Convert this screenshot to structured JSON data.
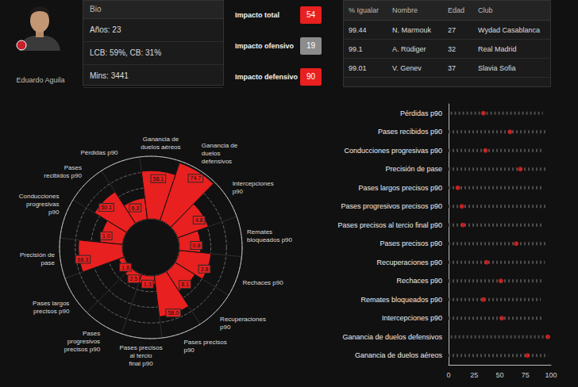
{
  "player": {
    "name": "Eduardo Aguila"
  },
  "bio": {
    "title": "Bio",
    "lines": [
      "Años: 23",
      "LCB: 59%, CB: 31%",
      "Mins: 3441"
    ]
  },
  "impact": [
    {
      "label": "Impacto total",
      "value": 54,
      "color": "#e8201f"
    },
    {
      "label": "Impacto ofensivo",
      "value": 19,
      "color": "#8c8c8c"
    },
    {
      "label": "Impacto defensivo",
      "value": 90,
      "color": "#e8201f"
    }
  ],
  "similar": {
    "columns": [
      "% Igualar",
      "Nombre",
      "Edad",
      "Club"
    ],
    "rows": [
      [
        99.44,
        "N. Marmouk",
        27,
        "Wydad Casablanca"
      ],
      [
        99.1,
        "A. Rüdiger",
        32,
        "Real Madrid"
      ],
      [
        99.01,
        "V. Genev",
        37,
        "Slavia Sofia"
      ]
    ]
  },
  "chart_data": [
    {
      "type": "polar_bar",
      "categories": [
        "Pérdidas p90",
        "Pases recibidos p90",
        "Conducciones progresivas p90",
        "Precisión de pase",
        "Pases largos precisos p90",
        "Pases progresivos precisos p90",
        "Pases precisos al tercio final p90",
        "Pases precisos p90",
        "Recuperaciones p90",
        "Rechaces p90",
        "Remates bloqueados p90",
        "Intercepciones p90",
        "Ganancia de duelos defensivos",
        "Ganancia de duelos aéreos"
      ],
      "values": [
        34,
        60,
        36,
        70,
        9,
        13,
        14,
        66,
        37,
        51,
        34,
        52,
        97,
        77
      ],
      "raw_values": [
        6.3,
        50.1,
        1.0,
        68.3,
        1.8,
        2.5,
        1.3,
        58.0,
        8.1,
        2.8,
        0.8,
        4.8,
        74.7,
        58.1
      ],
      "color": "#e8201f",
      "rlim": [
        0,
        100
      ],
      "rticks": [
        0,
        25,
        50,
        75,
        100
      ],
      "grid": true,
      "tick_labels": false
    },
    {
      "type": "strip",
      "orientation": "horizontal",
      "categories": [
        "Pérdidas p90",
        "Pases recibidos p90",
        "Conducciones progresivas p90",
        "Precisión de pase",
        "Pases largos precisos p90",
        "Pases progresivos precisos p90",
        "Pases precisos al tercio final p90",
        "Pases precisos p90",
        "Recuperaciones p90",
        "Rechaces p90",
        "Remates bloqueados p90",
        "Intercepciones p90",
        "Ganancia de duelos defensivos",
        "Ganancia de duelos aéreos"
      ],
      "values": [
        34,
        60,
        36,
        70,
        9,
        13,
        14,
        66,
        37,
        51,
        34,
        52,
        97,
        77
      ],
      "spread": [
        [
          2,
          92
        ],
        [
          0,
          95
        ],
        [
          0,
          93
        ],
        [
          0,
          95
        ],
        [
          0,
          92
        ],
        [
          0,
          95
        ],
        [
          0,
          93
        ],
        [
          0,
          96
        ],
        [
          0,
          94
        ],
        [
          0,
          92
        ],
        [
          0,
          90
        ],
        [
          0,
          93
        ],
        [
          2,
          98
        ],
        [
          0,
          97
        ]
      ],
      "color": "#e8201f",
      "xlim": [
        0,
        100
      ],
      "xticks": [
        0,
        25,
        50,
        75,
        100
      ],
      "grid": false
    }
  ]
}
